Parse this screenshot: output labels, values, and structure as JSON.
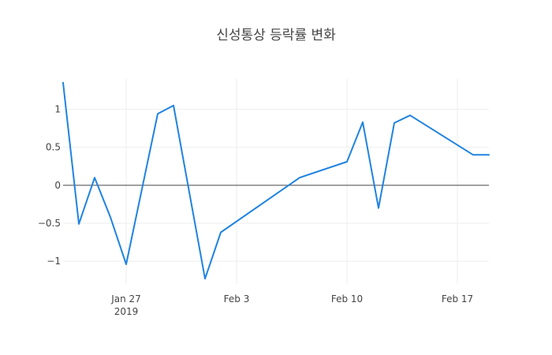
{
  "chart_data": {
    "type": "line",
    "title": "신성통상 등락률 변화",
    "xlabel": "",
    "ylabel": "",
    "x_range": [
      "2019-01-23",
      "2019-02-19"
    ],
    "ylim": [
      -1.3,
      1.4
    ],
    "grid": true,
    "legend": "none",
    "line_color": "#1f83e0",
    "x_ticks": [
      {
        "date": "2019-01-27",
        "label": "Jan 27",
        "sublabel": "2019"
      },
      {
        "date": "2019-02-03",
        "label": "Feb 3",
        "sublabel": ""
      },
      {
        "date": "2019-02-10",
        "label": "Feb 10",
        "sublabel": ""
      },
      {
        "date": "2019-02-17",
        "label": "Feb 17",
        "sublabel": ""
      }
    ],
    "y_ticks": [
      {
        "value": 1,
        "label": "1"
      },
      {
        "value": 0.5,
        "label": "0.5"
      },
      {
        "value": 0,
        "label": "0"
      },
      {
        "value": -0.5,
        "label": "−0.5"
      },
      {
        "value": -1,
        "label": "−1"
      }
    ],
    "series": [
      {
        "x": [
          "2019-01-23",
          "2019-01-24",
          "2019-01-25",
          "2019-01-26",
          "2019-01-27",
          "2019-01-29",
          "2019-01-30",
          "2019-02-01",
          "2019-02-02",
          "2019-02-07",
          "2019-02-10",
          "2019-02-11",
          "2019-02-12",
          "2019-02-13",
          "2019-02-14",
          "2019-02-18",
          "2019-02-19"
        ],
        "y": [
          1.35,
          -0.51,
          0.1,
          -0.42,
          -1.04,
          0.94,
          1.05,
          -1.23,
          -0.62,
          0.1,
          0.31,
          0.83,
          -0.3,
          0.82,
          0.92,
          0.4,
          0.4
        ]
      }
    ]
  }
}
